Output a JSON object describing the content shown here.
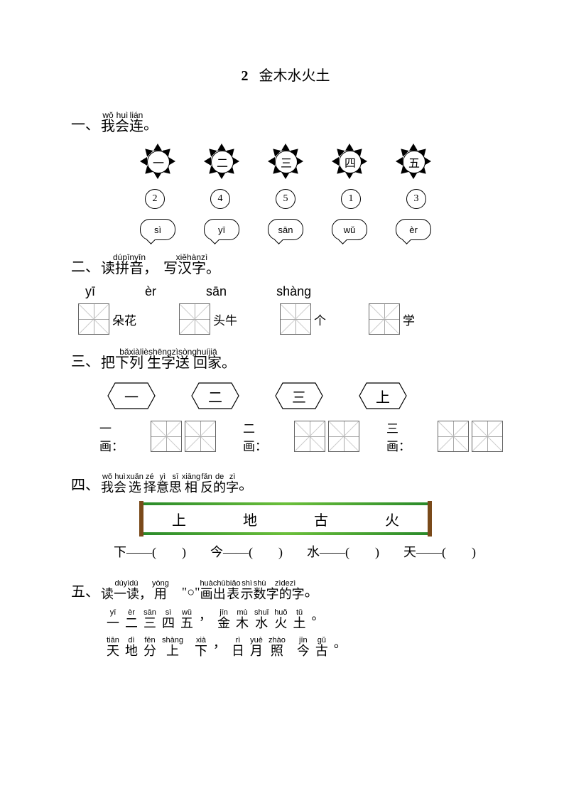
{
  "title": {
    "num": "2",
    "text": "金木水火土"
  },
  "colors": {
    "text": "#000000",
    "bg": "#ffffff",
    "border": "#666666",
    "green1": "#2a8a2a",
    "green2": "#6bbf3a",
    "bamboo": "#7a4a1a"
  },
  "sections": {
    "s1": {
      "label": "一、",
      "head": [
        {
          "py": "wǒ",
          "ch": "我"
        },
        {
          "py": "huì",
          "ch": "会"
        },
        {
          "py": "",
          "ch": ""
        },
        {
          "py": "lián",
          "ch": "连"
        }
      ],
      "tail": "。",
      "suns": [
        "一",
        "二",
        "三",
        "四",
        "五"
      ],
      "nums": [
        "2",
        "4",
        "5",
        "1",
        "3"
      ],
      "clouds": [
        "sì",
        "yī",
        "sān",
        "wǔ",
        "èr"
      ]
    },
    "s2": {
      "label": "二、",
      "head": [
        {
          "py": "dúpīnyīn",
          "ch": "读拼音，"
        },
        {
          "py": "xiěhànzì",
          "ch": "写汉字。"
        }
      ],
      "pinyin": [
        "yī",
        "èr",
        "sān",
        "shàng"
      ],
      "tails": [
        "朵花",
        "头牛",
        "个",
        "学"
      ]
    },
    "s3": {
      "label": "三、",
      "head_py": "bǎxiàlièshēngzìsònghuíjiā",
      "head_ch": "把下列 生字送 回家。",
      "hex": [
        "一",
        "二",
        "三",
        "上"
      ],
      "labels": [
        "一画：",
        "二画：",
        "三画："
      ]
    },
    "s4": {
      "label": "四、",
      "head": [
        {
          "py": "wǒ",
          "ch": "我"
        },
        {
          "py": "huì",
          "ch": "会"
        },
        {
          "py": "",
          "ch": ""
        },
        {
          "py": "xuǎn",
          "ch": "选"
        },
        {
          "py": "zé",
          "ch": "择"
        },
        {
          "py": "yì",
          "ch": "意"
        },
        {
          "py": "sī",
          "ch": "思"
        },
        {
          "py": "xiāng",
          "ch": "相"
        },
        {
          "py": "",
          "ch": ""
        },
        {
          "py": "fǎn",
          "ch": "反"
        },
        {
          "py": "",
          "ch": ""
        },
        {
          "py": "de",
          "ch": "的"
        },
        {
          "py": "zì",
          "ch": "字"
        }
      ],
      "tail": "。",
      "options": [
        "上",
        "地",
        "古",
        "火"
      ],
      "pairs": [
        {
          "l": "下",
          "r": "(　　)"
        },
        {
          "l": "今",
          "r": "(　　)"
        },
        {
          "l": "水",
          "r": "(　　)"
        },
        {
          "l": "天",
          "r": "(　　)"
        }
      ]
    },
    "s5": {
      "label": "五、",
      "head": [
        {
          "py": "dúyìdú",
          "ch": "读一读，"
        },
        {
          "py": "yòng",
          "ch": "用"
        },
        {
          "py": "",
          "ch": "　\"○\""
        },
        {
          "py": "huà",
          "ch": "画"
        },
        {
          "py": "chū",
          "ch": "出"
        },
        {
          "py": "biǎo",
          "ch": "表"
        },
        {
          "py": "",
          "ch": ""
        },
        {
          "py": "shì",
          "ch": "示"
        },
        {
          "py": "shù",
          "ch": "数"
        },
        {
          "py": "zìdezì",
          "ch": "字的字"
        }
      ],
      "tail": "。",
      "poem1": [
        {
          "py": "yī",
          "ch": "一"
        },
        {
          "py": "èr",
          "ch": "二"
        },
        {
          "py": "sān",
          "ch": "三"
        },
        {
          "py": "sì",
          "ch": "四"
        },
        {
          "py": "wǔ",
          "ch": "五"
        },
        {
          "py": "",
          "ch": "，"
        },
        {
          "py": "jīn",
          "ch": "金"
        },
        {
          "py": "mù",
          "ch": "木"
        },
        {
          "py": "shuǐ",
          "ch": "水"
        },
        {
          "py": "huǒ",
          "ch": "火"
        },
        {
          "py": "tǔ",
          "ch": "土"
        },
        {
          "py": "",
          "ch": "。"
        }
      ],
      "poem2": [
        {
          "py": "tiān",
          "ch": "天"
        },
        {
          "py": "dì",
          "ch": "地"
        },
        {
          "py": "fēn",
          "ch": "分"
        },
        {
          "py": "shàng",
          "ch": "上"
        },
        {
          "py": "",
          "ch": ""
        },
        {
          "py": "xià",
          "ch": "下"
        },
        {
          "py": "",
          "ch": "，"
        },
        {
          "py": "rì",
          "ch": "日"
        },
        {
          "py": "yuè",
          "ch": "月"
        },
        {
          "py": "zhào",
          "ch": "照"
        },
        {
          "py": "",
          "ch": ""
        },
        {
          "py": "jīn",
          "ch": "今"
        },
        {
          "py": "gǔ",
          "ch": "古"
        },
        {
          "py": "",
          "ch": "。"
        }
      ]
    }
  }
}
